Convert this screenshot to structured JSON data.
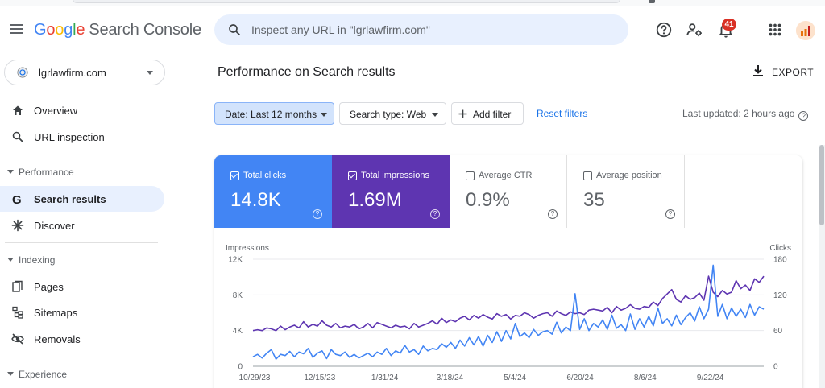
{
  "app": {
    "logo_parts": [
      "G",
      "o",
      "o",
      "g",
      "l",
      "e"
    ],
    "product": "Search Console"
  },
  "search": {
    "placeholder": "Inspect any URL in \"lgrlawfirm.com\""
  },
  "header_icons": [
    "help-icon",
    "manage-users-icon",
    "notifications-icon",
    "apps-icon"
  ],
  "notifications": {
    "count": "41"
  },
  "sidebar": {
    "property": "lgrlawfirm.com",
    "top_items": [
      {
        "label": "Overview",
        "icon": "home-icon"
      },
      {
        "label": "URL inspection",
        "icon": "search-icon"
      }
    ],
    "performance": {
      "heading": "Performance",
      "items": [
        {
          "label": "Search results",
          "icon": "google-g-icon",
          "active": true
        },
        {
          "label": "Discover",
          "icon": "asterisk-icon"
        }
      ]
    },
    "indexing": {
      "heading": "Indexing",
      "items": [
        {
          "label": "Pages",
          "icon": "pages-icon"
        },
        {
          "label": "Sitemaps",
          "icon": "sitemap-icon"
        },
        {
          "label": "Removals",
          "icon": "removals-icon"
        }
      ]
    },
    "experience": {
      "heading": "Experience"
    }
  },
  "main": {
    "title": "Performance on Search results",
    "export_label": "EXPORT",
    "filters": {
      "date": "Date: Last 12 months",
      "search_type": "Search type: Web",
      "add_filter": "Add filter",
      "reset": "Reset filters"
    },
    "last_updated": "Last updated: 2 hours ago",
    "metrics": [
      {
        "label": "Total clicks",
        "value": "14.8K",
        "checked": true,
        "color": "#4285f4"
      },
      {
        "label": "Total impressions",
        "value": "1.69M",
        "checked": true,
        "color": "#5e35b1"
      },
      {
        "label": "Average CTR",
        "value": "0.9%",
        "checked": false
      },
      {
        "label": "Average position",
        "value": "35",
        "checked": false
      }
    ]
  },
  "chart_data": {
    "type": "line",
    "left_axis_label": "Impressions",
    "right_axis_label": "Clicks",
    "left_ticks": [
      "12K",
      "8K",
      "4K",
      "0"
    ],
    "right_ticks": [
      "180",
      "120",
      "60",
      "0"
    ],
    "left_ylim": [
      0,
      12000
    ],
    "right_ylim": [
      0,
      180
    ],
    "x_tick_labels": [
      "10/29/23",
      "12/15/23",
      "1/31/24",
      "3/18/24",
      "5/4/24",
      "6/20/24",
      "8/6/24",
      "9/22/24"
    ],
    "x_range": [
      "10/29/23",
      "10/28/24"
    ],
    "grid": true,
    "series": [
      {
        "name": "Total impressions",
        "axis": "left",
        "color": "#5e35b1",
        "values": [
          4000,
          4100,
          4000,
          4300,
          4200,
          4000,
          4500,
          4100,
          4400,
          4600,
          4300,
          5000,
          4400,
          4700,
          4500,
          5100,
          4600,
          4400,
          4800,
          4300,
          4500,
          4400,
          4700,
          4200,
          4400,
          4800,
          4300,
          4900,
          4700,
          4500,
          4300,
          4600,
          4400,
          4500,
          4200,
          4800,
          4400,
          4600,
          4800,
          5100,
          4700,
          5400,
          4900,
          5200,
          5000,
          5400,
          5600,
          5200,
          5700,
          5400,
          5800,
          5500,
          5300,
          5900,
          5600,
          5800,
          5300,
          5700,
          5600,
          6000,
          5800,
          5400,
          5700,
          5900,
          6000,
          5600,
          6200,
          5900,
          5700,
          6100,
          5900,
          6000,
          5800,
          6300,
          6400,
          6300,
          6200,
          6600,
          6000,
          6700,
          6300,
          6500,
          6900,
          6500,
          6400,
          6700,
          6600,
          7200,
          6800,
          7600,
          8100,
          8600,
          7500,
          7200,
          7900,
          7500,
          7700,
          8200,
          7400,
          10100,
          8300,
          7800,
          8500,
          8100,
          8300,
          9600,
          8700,
          9100,
          8500,
          9800,
          9400,
          10100
        ]
      },
      {
        "name": "Total clicks",
        "axis": "right",
        "color": "#4285f4",
        "values": [
          16,
          20,
          14,
          22,
          28,
          12,
          20,
          18,
          25,
          16,
          24,
          21,
          30,
          15,
          22,
          26,
          13,
          28,
          20,
          18,
          24,
          15,
          20,
          14,
          18,
          22,
          16,
          24,
          20,
          30,
          18,
          26,
          22,
          35,
          24,
          28,
          20,
          34,
          26,
          30,
          28,
          38,
          32,
          40,
          30,
          44,
          34,
          48,
          36,
          50,
          34,
          52,
          40,
          58,
          42,
          60,
          46,
          72,
          50,
          56,
          48,
          62,
          52,
          58,
          60,
          54,
          74,
          56,
          66,
          60,
          122,
          62,
          80,
          60,
          72,
          66,
          78,
          62,
          86,
          64,
          70,
          60,
          88,
          62,
          80,
          66,
          84,
          68,
          98,
          72,
          80,
          68,
          86,
          70,
          82,
          90,
          76,
          100,
          80,
          96,
          170,
          84,
          104,
          80,
          98,
          84,
          96,
          82,
          104,
          86,
          100,
          96
        ]
      }
    ]
  }
}
